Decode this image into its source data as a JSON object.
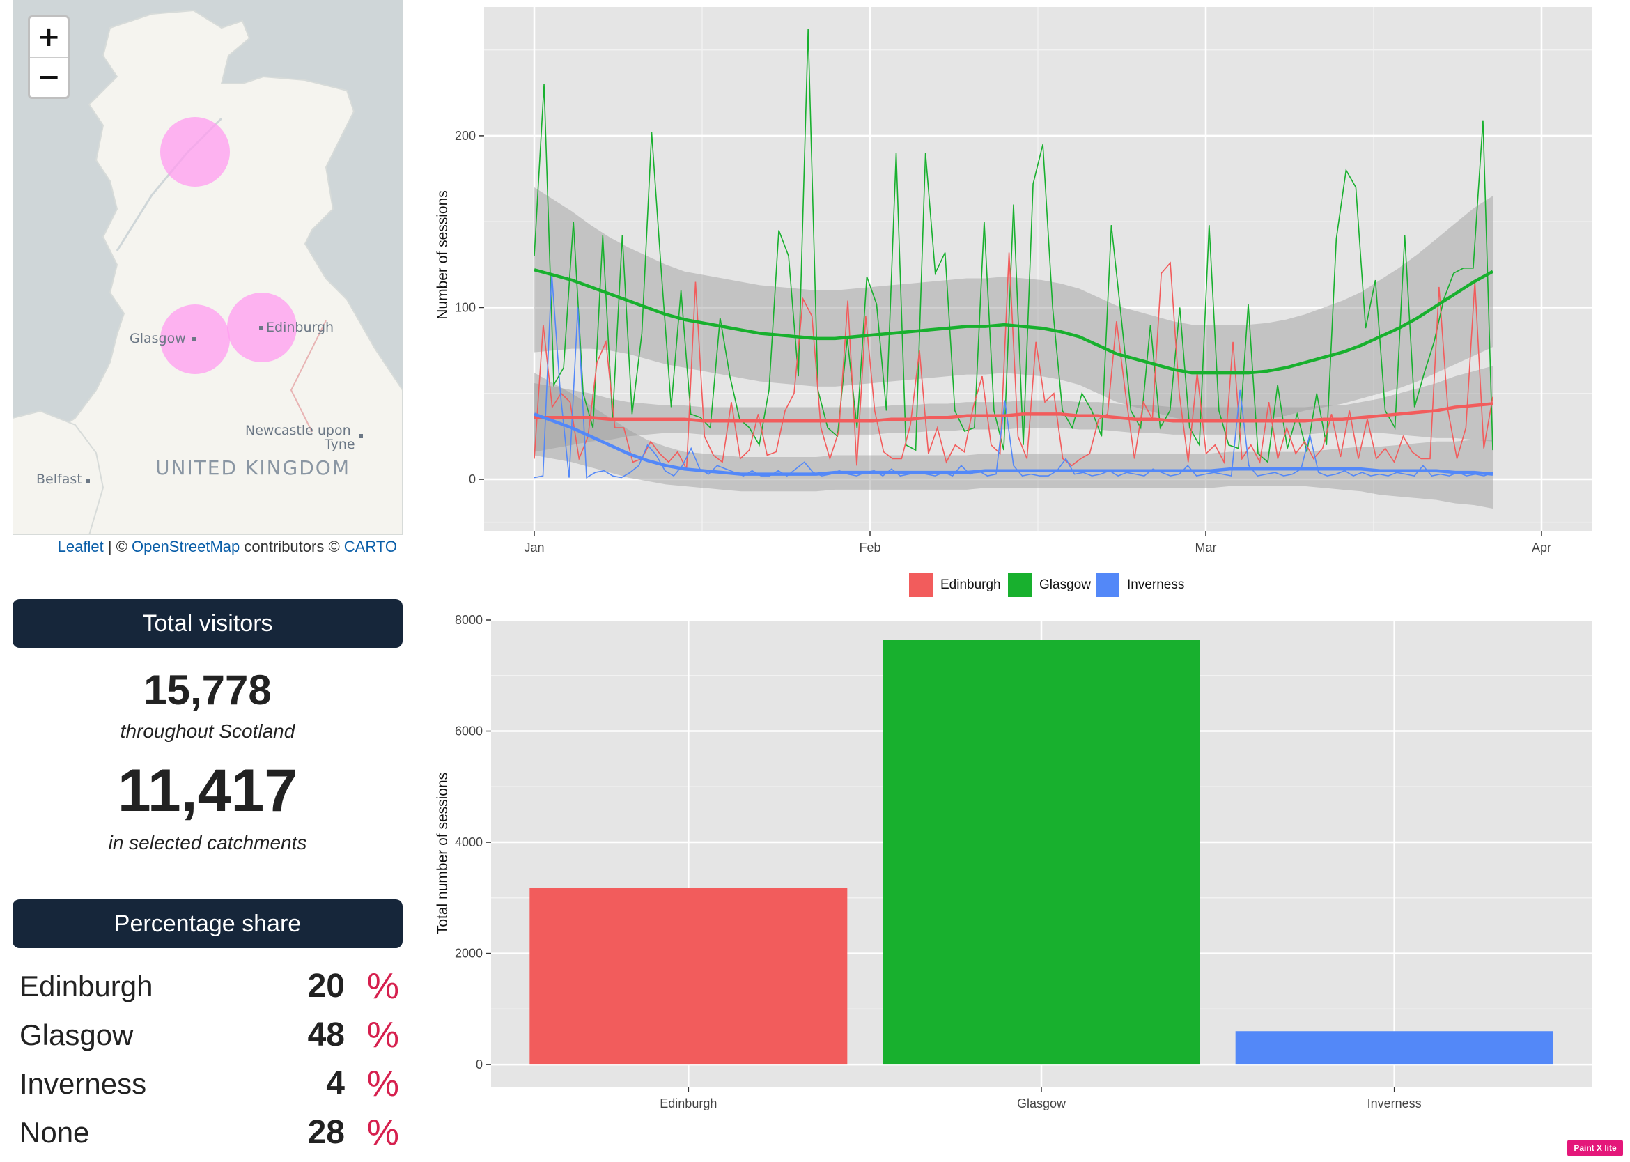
{
  "map": {
    "zoom_in": "+",
    "zoom_out": "−",
    "labels": {
      "glasgow": "Glasgow",
      "edinburgh": "Edinburgh",
      "newcastle_line1": "Newcastle upon",
      "newcastle_line2": "Tyne",
      "belfast": "Belfast",
      "country": "UNITED KINGDOM"
    },
    "attribution": {
      "leaflet": "Leaflet",
      "sep": " | © ",
      "osm": "OpenStreetMap",
      "middle": " contributors © ",
      "carto": "CARTO"
    },
    "circle_color": "#ff9cf0"
  },
  "totals": {
    "header": "Total visitors",
    "scotland_value": "15,778",
    "scotland_caption": "throughout Scotland",
    "catchment_value": "11,417",
    "catchment_caption": "in selected catchments"
  },
  "share": {
    "header": "Percentage share",
    "pct_symbol": "%",
    "rows": [
      {
        "name": "Edinburgh",
        "value": "20"
      },
      {
        "name": "Glasgow",
        "value": "48"
      },
      {
        "name": "Inverness",
        "value": "4"
      },
      {
        "name": "None",
        "value": "28"
      }
    ]
  },
  "legend": [
    {
      "name": "Edinburgh",
      "color": "#f25c5c"
    },
    {
      "name": "Glasgow",
      "color": "#18b02e"
    },
    {
      "name": "Inverness",
      "color": "#5388f8"
    }
  ],
  "chart_data": [
    {
      "type": "line",
      "ylabel": "Number of sessions",
      "xlabel": "",
      "x_ticks": [
        "Jan",
        "Feb",
        "Mar",
        "Apr"
      ],
      "y_ticks": [
        0,
        100,
        200
      ],
      "ylim": [
        -30,
        275
      ],
      "grid": true,
      "legend": "bottom",
      "series": [
        {
          "name": "Glasgow",
          "color": "#18b02e",
          "values": [
            130,
            230,
            55,
            65,
            150,
            50,
            30,
            142,
            35,
            142,
            38,
            85,
            202,
            120,
            42,
            110,
            38,
            36,
            30,
            94,
            60,
            35,
            30,
            20,
            52,
            145,
            130,
            60,
            262,
            52,
            30,
            25,
            82,
            30,
            118,
            102,
            40,
            190,
            20,
            17,
            190,
            120,
            132,
            40,
            28,
            30,
            150,
            40,
            17,
            160,
            20,
            172,
            195,
            100,
            40,
            30,
            50,
            40,
            25,
            148,
            95,
            40,
            30,
            90,
            30,
            40,
            100,
            30,
            20,
            148,
            40,
            20,
            18,
            102,
            15,
            10,
            55,
            18,
            38,
            16,
            50,
            20,
            140,
            180,
            170,
            88,
            116,
            40,
            30,
            142,
            42,
            62,
            80,
            105,
            120,
            123,
            123,
            209,
            17
          ],
          "smooth": [
            122,
            119,
            116,
            112,
            108,
            104,
            100,
            96,
            93,
            91,
            89,
            87,
            85,
            84,
            83,
            82,
            82,
            83,
            84,
            85,
            86,
            87,
            88,
            89,
            89,
            90,
            89,
            88,
            86,
            83,
            78,
            73,
            70,
            67,
            64,
            62,
            62,
            62,
            62,
            63,
            65,
            68,
            71,
            74,
            78,
            83,
            88,
            94,
            101,
            108,
            115,
            121
          ],
          "band": [
            48,
            44,
            40,
            36,
            33,
            31,
            30,
            29,
            28,
            28,
            28,
            28,
            28,
            28,
            28,
            28,
            28,
            28,
            28,
            28,
            28,
            28,
            28,
            28,
            28,
            28,
            28,
            28,
            28,
            28,
            28,
            28,
            28,
            28,
            28,
            28,
            28,
            28,
            28,
            28,
            28,
            28,
            29,
            30,
            31,
            33,
            35,
            37,
            39,
            41,
            43,
            44
          ]
        },
        {
          "name": "Edinburgh",
          "color": "#f25c5c",
          "values": [
            12,
            90,
            42,
            50,
            45,
            12,
            25,
            68,
            80,
            30,
            30,
            10,
            12,
            22,
            15,
            10,
            16,
            6,
            115,
            25,
            14,
            10,
            45,
            12,
            17,
            38,
            14,
            16,
            40,
            50,
            105,
            95,
            30,
            12,
            28,
            104,
            8,
            95,
            40,
            16,
            12,
            12,
            32,
            75,
            15,
            30,
            10,
            20,
            16,
            42,
            60,
            20,
            15,
            132,
            25,
            12,
            80,
            45,
            50,
            12,
            8,
            12,
            15,
            35,
            38,
            92,
            50,
            12,
            45,
            35,
            120,
            126,
            50,
            10,
            62,
            15,
            20,
            10,
            80,
            12,
            20,
            10,
            45,
            12,
            30,
            15,
            22,
            12,
            18,
            38,
            13,
            40,
            12,
            35,
            12,
            18,
            10,
            25,
            16,
            12,
            12,
            112,
            40,
            12,
            30,
            115,
            18,
            48
          ],
          "smooth": [
            36,
            36,
            36,
            36,
            35,
            35,
            35,
            35,
            35,
            34,
            34,
            34,
            34,
            34,
            34,
            34,
            34,
            34,
            34,
            35,
            35,
            36,
            36,
            37,
            37,
            37,
            38,
            38,
            38,
            37,
            37,
            36,
            35,
            35,
            34,
            34,
            34,
            34,
            34,
            34,
            34,
            34,
            35,
            35,
            36,
            37,
            38,
            39,
            40,
            42,
            43,
            44
          ],
          "band": [
            20,
            18,
            16,
            14,
            12,
            10,
            9,
            8,
            8,
            8,
            8,
            8,
            8,
            8,
            8,
            8,
            8,
            8,
            8,
            8,
            8,
            8,
            8,
            8,
            8,
            8,
            8,
            8,
            8,
            8,
            8,
            8,
            8,
            8,
            8,
            8,
            8,
            8,
            8,
            8,
            8,
            8,
            8,
            8,
            9,
            10,
            12,
            14,
            16,
            18,
            20,
            22
          ]
        },
        {
          "name": "Inverness",
          "color": "#5388f8",
          "values": [
            1,
            2,
            120,
            50,
            1,
            100,
            1,
            4,
            5,
            2,
            1,
            4,
            8,
            20,
            14,
            5,
            2,
            8,
            18,
            6,
            3,
            8,
            6,
            4,
            2,
            5,
            2,
            2,
            5,
            2,
            6,
            10,
            4,
            2,
            3,
            5,
            3,
            2,
            4,
            5,
            2,
            6,
            2,
            3,
            4,
            3,
            2,
            4,
            2,
            8,
            3,
            5,
            2,
            3,
            46,
            8,
            2,
            3,
            2,
            2,
            5,
            12,
            3,
            4,
            2,
            3,
            5,
            2,
            4,
            3,
            2,
            6,
            4,
            2,
            3,
            8,
            2,
            3,
            4,
            3,
            2,
            52,
            8,
            2,
            3,
            4,
            2,
            3,
            6,
            26,
            4,
            2,
            3,
            5,
            2,
            4,
            2,
            3,
            2,
            4,
            3,
            2,
            8,
            2,
            3,
            2,
            4,
            2,
            3,
            2,
            4
          ],
          "smooth": [
            38,
            34,
            30,
            25,
            20,
            15,
            11,
            8,
            6,
            5,
            4,
            3,
            3,
            3,
            3,
            3,
            4,
            4,
            4,
            4,
            4,
            4,
            4,
            4,
            5,
            5,
            5,
            5,
            5,
            5,
            5,
            5,
            5,
            5,
            5,
            5,
            5,
            6,
            6,
            6,
            6,
            6,
            6,
            6,
            6,
            5,
            5,
            5,
            5,
            4,
            4,
            3
          ],
          "band": [
            24,
            22,
            20,
            18,
            16,
            14,
            12,
            11,
            10,
            10,
            10,
            10,
            10,
            10,
            10,
            10,
            10,
            10,
            10,
            10,
            10,
            10,
            10,
            10,
            10,
            10,
            10,
            10,
            10,
            10,
            10,
            10,
            10,
            10,
            10,
            10,
            10,
            10,
            10,
            10,
            10,
            10,
            11,
            12,
            13,
            14,
            15,
            16,
            17,
            18,
            19,
            20
          ]
        }
      ]
    },
    {
      "type": "bar",
      "ylabel": "Total number of sessions",
      "xlabel": "",
      "categories": [
        "Edinburgh",
        "Glasgow",
        "Inverness"
      ],
      "values": [
        3180,
        7640,
        600
      ],
      "colors": [
        "#f25c5c",
        "#18b02e",
        "#5388f8"
      ],
      "y_ticks": [
        0,
        2000,
        4000,
        6000,
        8000
      ],
      "ylim": [
        -400,
        8000
      ],
      "grid": true
    }
  ],
  "badge": "Paint X lite"
}
